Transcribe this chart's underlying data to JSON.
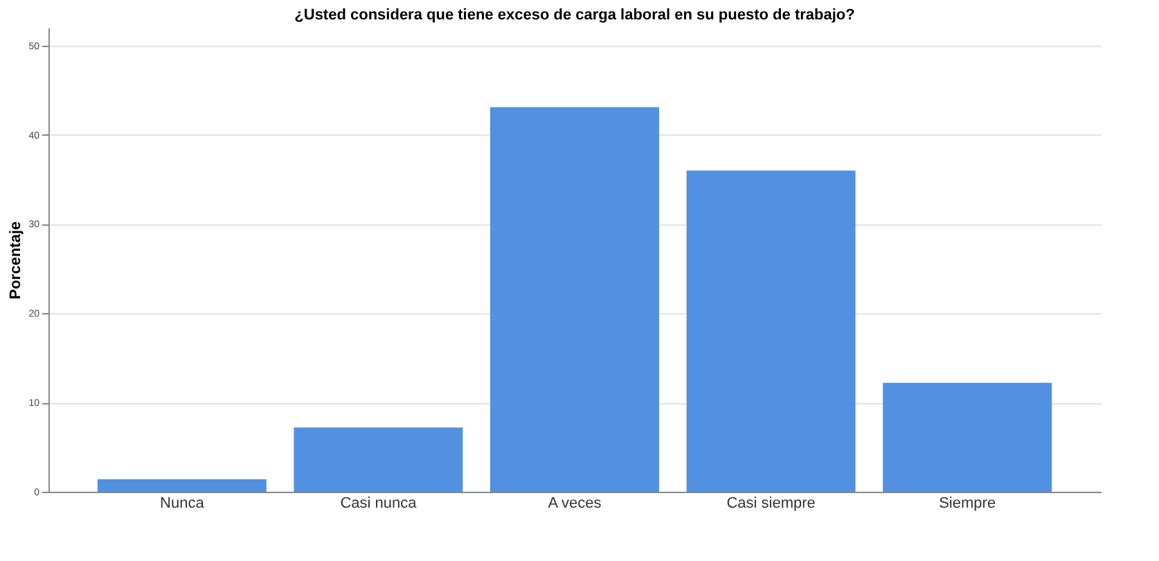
{
  "chart_data": {
    "type": "bar",
    "title": "¿Usted considera que tiene exceso de carga laboral en su puesto de trabajo?",
    "ylabel": "Porcentaje",
    "categories": [
      "Nunca",
      "Casi nunca",
      "A veces",
      "Casi siempre",
      "Siempre"
    ],
    "values": [
      1.4,
      7.2,
      43.1,
      36.0,
      12.2
    ],
    "color": "#5291e1",
    "ylim": [
      0,
      52
    ],
    "yticks": [
      0,
      10,
      20,
      30,
      40,
      50
    ],
    "grid": "y"
  }
}
